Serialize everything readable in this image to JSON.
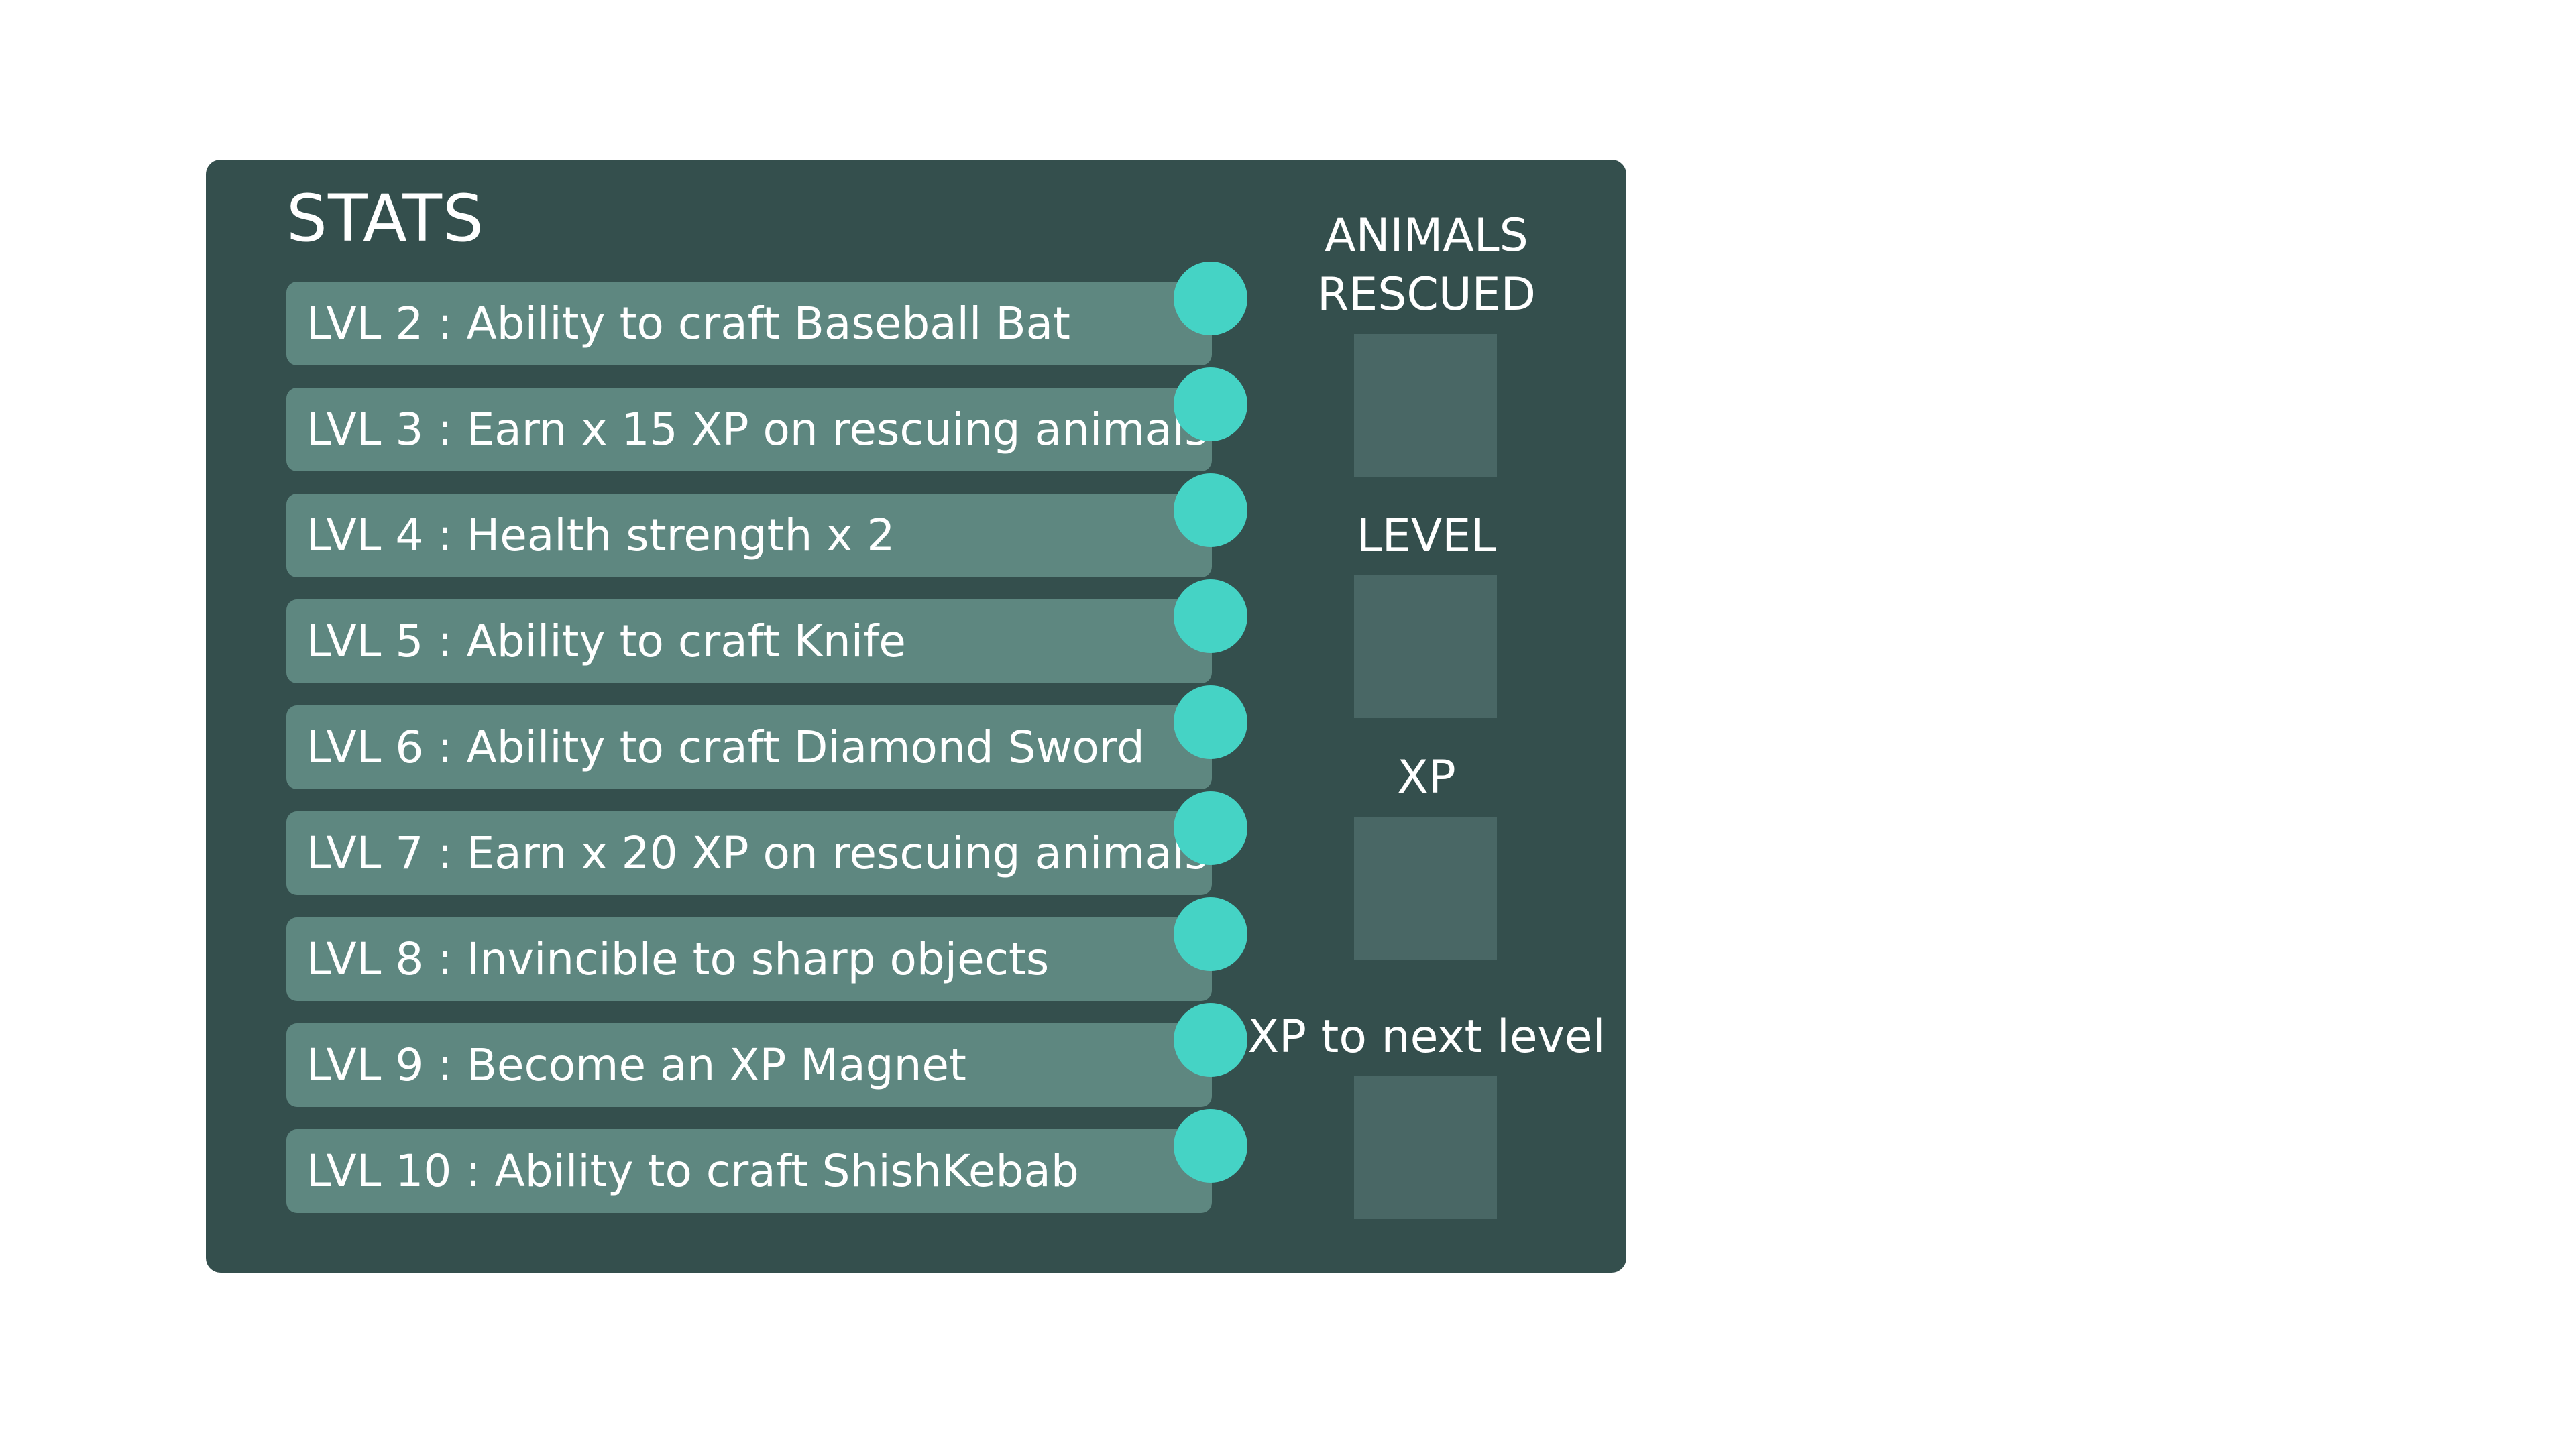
{
  "stats_panel": {
    "title": "STATS",
    "levels": [
      {
        "label": "LVL 2 : Ability to craft Baseball Bat"
      },
      {
        "label": "LVL 3 : Earn x 15 XP on rescuing animals"
      },
      {
        "label": "LVL 4 : Health strength x 2"
      },
      {
        "label": "LVL 5 : Ability to craft Knife"
      },
      {
        "label": "LVL 6 : Ability to craft Diamond Sword"
      },
      {
        "label": "LVL 7 : Earn x 20 XP on rescuing animals"
      },
      {
        "label": "LVL 8 : Invincible to sharp objects"
      },
      {
        "label": "LVL 9 : Become an XP Magnet"
      },
      {
        "label": "LVL 10 : Ability to craft ShishKebab"
      }
    ],
    "counters": {
      "animals_rescued_line1": "ANIMALS",
      "animals_rescued_line2": "RESCUED",
      "level": "LEVEL",
      "xp": "XP",
      "xp_to_next": "XP to next level"
    }
  },
  "colors": {
    "panel": "#344f4d",
    "row": "#5e8780",
    "dot": "#45d3c5",
    "box": "#496765"
  }
}
